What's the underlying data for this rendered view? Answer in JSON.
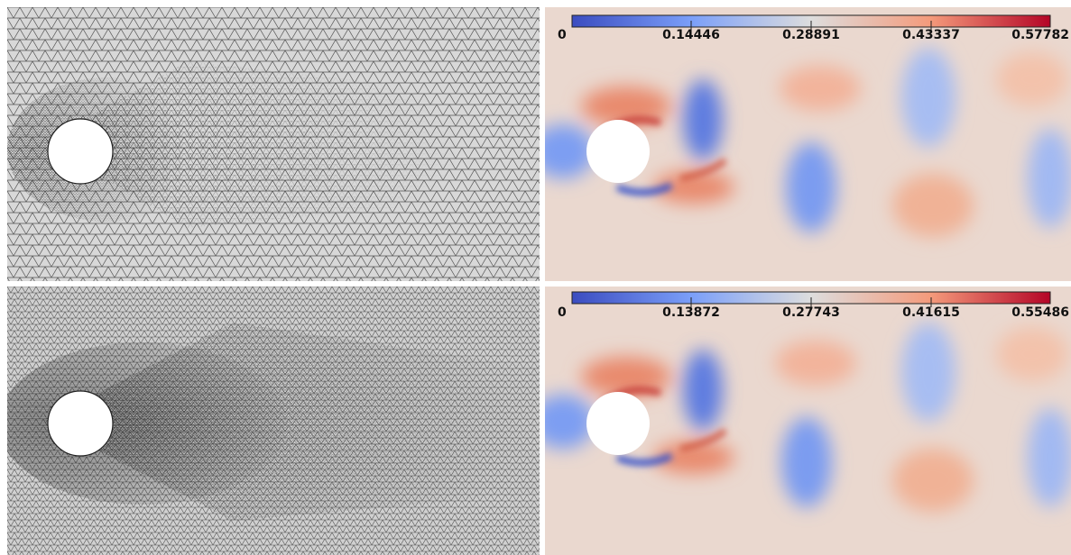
{
  "panels": [
    {
      "id": "mesh-coarse",
      "kind": "mesh",
      "density": "coarse"
    },
    {
      "id": "field-coarse",
      "kind": "velocity-field",
      "colorbar": {
        "colormap": "coolwarm",
        "low_color": "#3b4cc0",
        "mid_color": "#dddddd",
        "high_color": "#b40426",
        "ticks": [
          "0",
          "0.14446",
          "0.28891",
          "0.43337",
          "0.57782"
        ]
      }
    },
    {
      "id": "mesh-fine",
      "kind": "mesh",
      "density": "fine"
    },
    {
      "id": "field-fine",
      "kind": "velocity-field",
      "colorbar": {
        "colormap": "coolwarm",
        "low_color": "#3b4cc0",
        "mid_color": "#dddddd",
        "high_color": "#b40426",
        "ticks": [
          "0",
          "0.13872",
          "0.27743",
          "0.41615",
          "0.55486"
        ]
      }
    }
  ],
  "colors": {
    "mesh_background": "#d8d8d8",
    "mesh_line": "#333333",
    "field_background": "#ead8cf",
    "obstacle": "#ffffff"
  }
}
